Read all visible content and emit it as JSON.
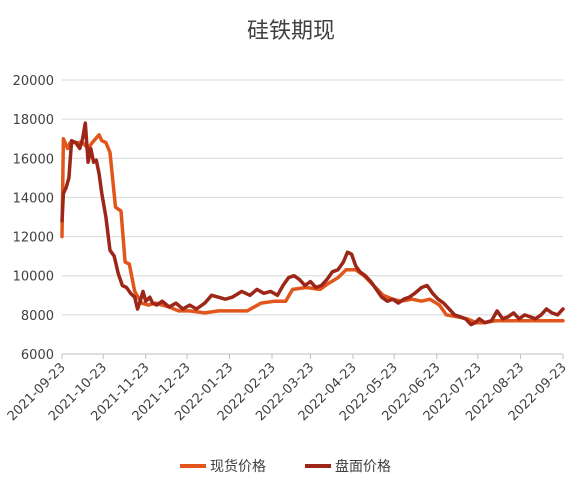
{
  "chart_data": {
    "type": "line",
    "title": "硅铁期现",
    "xlabel": "",
    "ylabel": "",
    "ylim": [
      6000,
      20000
    ],
    "yticks": [
      6000,
      8000,
      10000,
      12000,
      14000,
      16000,
      18000,
      20000
    ],
    "ytick_labels": [
      "6000",
      "8000",
      "10000",
      "12000",
      "14000",
      "16000",
      "18000",
      "20000"
    ],
    "xticks": [
      "2021-09-23",
      "2021-10-23",
      "2021-11-23",
      "2021-12-23",
      "2022-01-23",
      "2022-02-23",
      "2022-03-23",
      "2022-04-23",
      "2022-05-23",
      "2022-06-23",
      "2022-07-23",
      "2022-08-23",
      "2022-09-23"
    ],
    "xlim": [
      "2021-09-23",
      "2022-09-23"
    ],
    "grid": true,
    "legend": "bottom",
    "series": [
      {
        "name": "现货价格",
        "color": "#e2561c",
        "points": [
          [
            "2021-09-23",
            12000
          ],
          [
            "2021-09-24",
            17000
          ],
          [
            "2021-09-27",
            16500
          ],
          [
            "2021-09-29",
            16800
          ],
          [
            "2021-10-08",
            16800
          ],
          [
            "2021-10-12",
            16500
          ],
          [
            "2021-10-15",
            16800
          ],
          [
            "2021-10-20",
            17200
          ],
          [
            "2021-10-22",
            16900
          ],
          [
            "2021-10-25",
            16800
          ],
          [
            "2021-10-28",
            16300
          ],
          [
            "2021-11-01",
            13500
          ],
          [
            "2021-11-05",
            13300
          ],
          [
            "2021-11-08",
            10700
          ],
          [
            "2021-11-11",
            10600
          ],
          [
            "2021-11-15",
            9200
          ],
          [
            "2021-11-20",
            8600
          ],
          [
            "2021-11-25",
            8500
          ],
          [
            "2021-11-30",
            8600
          ],
          [
            "2021-12-05",
            8500
          ],
          [
            "2021-12-10",
            8400
          ],
          [
            "2021-12-17",
            8200
          ],
          [
            "2021-12-25",
            8200
          ],
          [
            "2022-01-05",
            8100
          ],
          [
            "2022-01-15",
            8200
          ],
          [
            "2022-01-25",
            8200
          ],
          [
            "2022-02-05",
            8200
          ],
          [
            "2022-02-15",
            8600
          ],
          [
            "2022-02-25",
            8700
          ],
          [
            "2022-03-05",
            8700
          ],
          [
            "2022-03-10",
            9300
          ],
          [
            "2022-03-20",
            9400
          ],
          [
            "2022-03-30",
            9300
          ],
          [
            "2022-04-05",
            9600
          ],
          [
            "2022-04-12",
            9900
          ],
          [
            "2022-04-18",
            10300
          ],
          [
            "2022-04-25",
            10300
          ],
          [
            "2022-05-01",
            10000
          ],
          [
            "2022-05-08",
            9500
          ],
          [
            "2022-05-15",
            9000
          ],
          [
            "2022-05-22",
            8800
          ],
          [
            "2022-05-28",
            8700
          ],
          [
            "2022-06-05",
            8800
          ],
          [
            "2022-06-12",
            8700
          ],
          [
            "2022-06-18",
            8800
          ],
          [
            "2022-06-25",
            8500
          ],
          [
            "2022-06-30",
            8000
          ],
          [
            "2022-07-08",
            7900
          ],
          [
            "2022-07-15",
            7800
          ],
          [
            "2022-07-22",
            7600
          ],
          [
            "2022-07-28",
            7600
          ],
          [
            "2022-08-05",
            7700
          ],
          [
            "2022-08-15",
            7700
          ],
          [
            "2022-08-25",
            7700
          ],
          [
            "2022-09-05",
            7700
          ],
          [
            "2022-09-15",
            7700
          ],
          [
            "2022-09-23",
            7700
          ]
        ]
      },
      {
        "name": "盘面价格",
        "color": "#9c2618",
        "points": [
          [
            "2021-09-23",
            12800
          ],
          [
            "2021-09-24",
            14200
          ],
          [
            "2021-09-26",
            14500
          ],
          [
            "2021-09-28",
            15000
          ],
          [
            "2021-09-30",
            16900
          ],
          [
            "2021-10-03",
            16800
          ],
          [
            "2021-10-06",
            16500
          ],
          [
            "2021-10-08",
            17000
          ],
          [
            "2021-10-10",
            17800
          ],
          [
            "2021-10-12",
            15800
          ],
          [
            "2021-10-14",
            16500
          ],
          [
            "2021-10-16",
            15800
          ],
          [
            "2021-10-18",
            15900
          ],
          [
            "2021-10-20",
            15200
          ],
          [
            "2021-10-22",
            14200
          ],
          [
            "2021-10-25",
            13000
          ],
          [
            "2021-10-28",
            11300
          ],
          [
            "2021-10-31",
            11000
          ],
          [
            "2021-11-03",
            10100
          ],
          [
            "2021-11-06",
            9500
          ],
          [
            "2021-11-09",
            9400
          ],
          [
            "2021-11-12",
            9100
          ],
          [
            "2021-11-15",
            8900
          ],
          [
            "2021-11-17",
            8300
          ],
          [
            "2021-11-19",
            8700
          ],
          [
            "2021-11-21",
            9200
          ],
          [
            "2021-11-23",
            8700
          ],
          [
            "2021-11-26",
            8900
          ],
          [
            "2021-11-28",
            8600
          ],
          [
            "2021-12-01",
            8500
          ],
          [
            "2021-12-05",
            8700
          ],
          [
            "2021-12-10",
            8400
          ],
          [
            "2021-12-15",
            8600
          ],
          [
            "2021-12-20",
            8300
          ],
          [
            "2021-12-25",
            8500
          ],
          [
            "2021-12-30",
            8300
          ],
          [
            "2022-01-05",
            8600
          ],
          [
            "2022-01-10",
            9000
          ],
          [
            "2022-01-15",
            8900
          ],
          [
            "2022-01-20",
            8800
          ],
          [
            "2022-01-25",
            8900
          ],
          [
            "2022-02-01",
            9200
          ],
          [
            "2022-02-07",
            9000
          ],
          [
            "2022-02-12",
            9300
          ],
          [
            "2022-02-17",
            9100
          ],
          [
            "2022-02-22",
            9200
          ],
          [
            "2022-02-27",
            9000
          ],
          [
            "2022-03-03",
            9500
          ],
          [
            "2022-03-07",
            9900
          ],
          [
            "2022-03-11",
            10000
          ],
          [
            "2022-03-15",
            9800
          ],
          [
            "2022-03-19",
            9500
          ],
          [
            "2022-03-23",
            9700
          ],
          [
            "2022-03-27",
            9400
          ],
          [
            "2022-03-31",
            9500
          ],
          [
            "2022-04-04",
            9800
          ],
          [
            "2022-04-08",
            10200
          ],
          [
            "2022-04-12",
            10300
          ],
          [
            "2022-04-16",
            10700
          ],
          [
            "2022-04-19",
            11200
          ],
          [
            "2022-04-22",
            11100
          ],
          [
            "2022-04-25",
            10500
          ],
          [
            "2022-04-28",
            10200
          ],
          [
            "2022-05-02",
            10000
          ],
          [
            "2022-05-06",
            9700
          ],
          [
            "2022-05-10",
            9300
          ],
          [
            "2022-05-14",
            8900
          ],
          [
            "2022-05-18",
            8700
          ],
          [
            "2022-05-22",
            8800
          ],
          [
            "2022-05-26",
            8600
          ],
          [
            "2022-05-30",
            8800
          ],
          [
            "2022-06-03",
            8900
          ],
          [
            "2022-06-07",
            9100
          ],
          [
            "2022-06-12",
            9400
          ],
          [
            "2022-06-16",
            9500
          ],
          [
            "2022-06-20",
            9100
          ],
          [
            "2022-06-24",
            8800
          ],
          [
            "2022-06-28",
            8600
          ],
          [
            "2022-07-02",
            8300
          ],
          [
            "2022-07-06",
            8000
          ],
          [
            "2022-07-10",
            7900
          ],
          [
            "2022-07-14",
            7800
          ],
          [
            "2022-07-18",
            7500
          ],
          [
            "2022-07-21",
            7600
          ],
          [
            "2022-07-24",
            7800
          ],
          [
            "2022-07-28",
            7600
          ],
          [
            "2022-08-02",
            7700
          ],
          [
            "2022-08-06",
            8200
          ],
          [
            "2022-08-10",
            7800
          ],
          [
            "2022-08-14",
            7900
          ],
          [
            "2022-08-18",
            8100
          ],
          [
            "2022-08-22",
            7800
          ],
          [
            "2022-08-26",
            8000
          ],
          [
            "2022-08-30",
            7900
          ],
          [
            "2022-09-03",
            7800
          ],
          [
            "2022-09-07",
            8000
          ],
          [
            "2022-09-11",
            8300
          ],
          [
            "2022-09-15",
            8100
          ],
          [
            "2022-09-19",
            8000
          ],
          [
            "2022-09-23",
            8300
          ]
        ]
      }
    ]
  }
}
